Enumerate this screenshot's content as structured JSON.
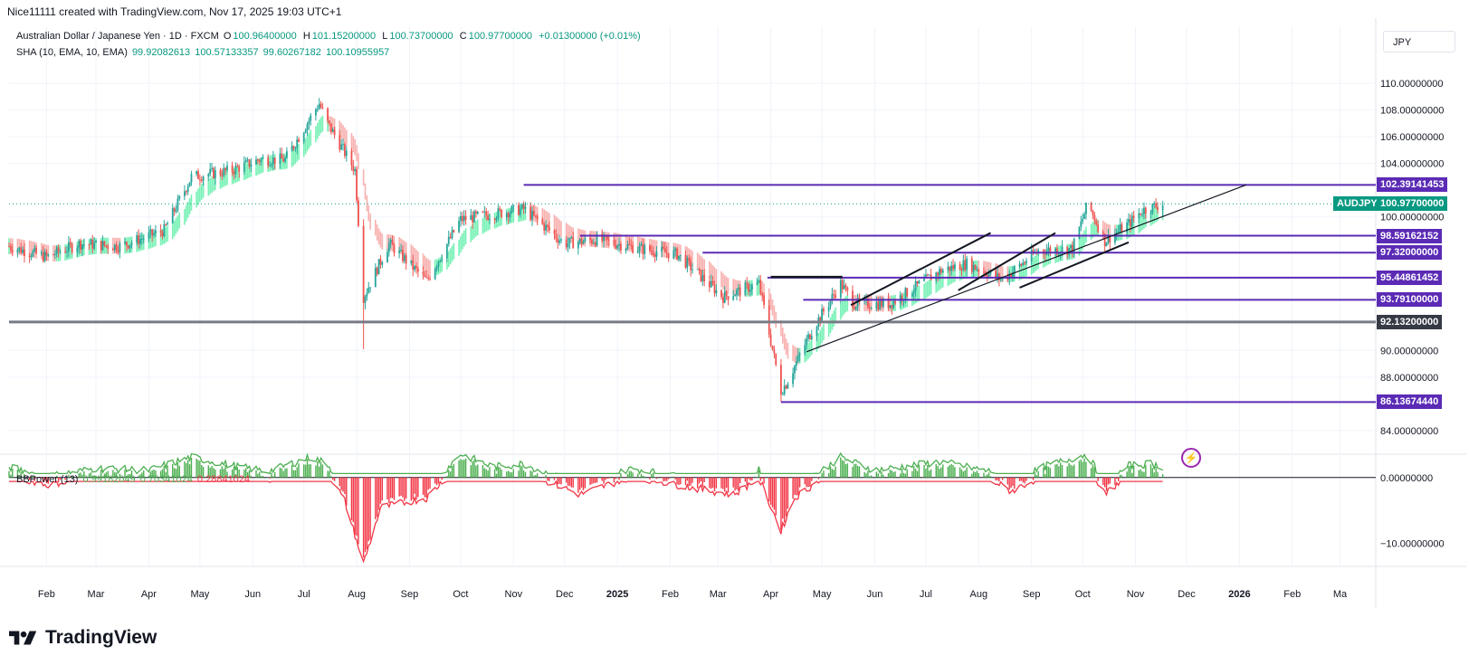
{
  "header": {
    "byline": "Nice11111 created with TradingView.com, Nov 17, 2025 19:03 UTC+1"
  },
  "legend": {
    "symbol_title": "Australian Dollar / Japanese Yen · 1D · FXCM",
    "open_label": "O",
    "open": "100.96400000",
    "high_label": "H",
    "high": "101.15200000",
    "low_label": "L",
    "low": "100.73700000",
    "close_label": "C",
    "close": "100.97700000",
    "change": "+0.01300000 (+0.01%)",
    "sha_label": "SHA (10, EMA, 10, EMA)",
    "sha_values": [
      "99.92082613",
      "100.57133357",
      "99.60267182",
      "100.10955957"
    ],
    "bbp_label": "BBPower (13)",
    "bbp_values": [
      "0.99182049",
      "0.70341024",
      "0.28841024"
    ]
  },
  "currency": "JPY",
  "footer": {
    "brand": "TradingView"
  },
  "colors": {
    "up": "#26a69a",
    "up_light": "#69f0ae",
    "down": "#ef5350",
    "down_light": "#f7a9a7",
    "level": "#5b2bb5",
    "support": "#787b86",
    "bbp_up": "#4caf50",
    "bbp_down": "#f23645",
    "teal": "#089981"
  },
  "chart_data": [
    {
      "type": "candlestick",
      "title": "Australian Dollar / Japanese Yen · 1D · FXCM",
      "symbol": "AUDJPY",
      "y_axis": {
        "unit": "JPY",
        "ticks": [
          "110.00000000",
          "108.00000000",
          "106.00000000",
          "104.00000000",
          "100.00000000",
          "90.00000000",
          "88.00000000",
          "84.00000000"
        ],
        "tick_values": [
          110,
          108,
          106,
          104,
          100,
          90,
          88,
          84
        ],
        "ylim": [
          82.5,
          111.5
        ]
      },
      "x_axis": {
        "ticks": [
          "Feb",
          "Mar",
          "Apr",
          "May",
          "Jun",
          "Jul",
          "Aug",
          "Sep",
          "Oct",
          "Nov",
          "Dec",
          "2025",
          "Feb",
          "Mar",
          "Apr",
          "May",
          "Jun",
          "Jul",
          "Aug",
          "Sep",
          "Oct",
          "Nov",
          "Dec",
          "2026",
          "Feb",
          "Ma"
        ],
        "tick_dates": [
          "2024-02-01",
          "2024-03-01",
          "2024-04-01",
          "2024-05-01",
          "2024-06-01",
          "2024-07-01",
          "2024-08-01",
          "2024-09-01",
          "2024-10-01",
          "2024-11-01",
          "2024-12-01",
          "2025-01-01",
          "2025-02-01",
          "2025-03-01",
          "2025-04-01",
          "2025-05-01",
          "2025-06-01",
          "2025-07-01",
          "2025-08-01",
          "2025-09-01",
          "2025-10-01",
          "2025-11-01",
          "2025-12-01",
          "2026-01-01",
          "2026-02-01",
          "2026-03-01"
        ]
      },
      "price_path": [
        [
          "2024-01-10",
          97.8
        ],
        [
          "2024-02-01",
          97.0
        ],
        [
          "2024-02-20",
          98.0
        ],
        [
          "2024-03-15",
          97.8
        ],
        [
          "2024-04-10",
          99.0
        ],
        [
          "2024-04-26",
          103.0
        ],
        [
          "2024-05-20",
          103.5
        ],
        [
          "2024-06-05",
          104.3
        ],
        [
          "2024-06-20",
          104.3
        ],
        [
          "2024-07-10",
          108.5
        ],
        [
          "2024-07-15",
          107.0
        ],
        [
          "2024-07-31",
          103.5
        ],
        [
          "2024-08-05",
          94.0
        ],
        [
          "2024-08-20",
          98.0
        ],
        [
          "2024-09-11",
          95.2
        ],
        [
          "2024-10-01",
          99.8
        ],
        [
          "2024-11-07",
          100.6
        ],
        [
          "2024-12-01",
          98.0
        ],
        [
          "2024-12-20",
          98.3
        ],
        [
          "2025-01-15",
          97.6
        ],
        [
          "2025-02-05",
          97.2
        ],
        [
          "2025-03-04",
          94.0
        ],
        [
          "2025-03-25",
          95.0
        ],
        [
          "2025-04-07",
          87.0
        ],
        [
          "2025-04-10",
          87.5
        ],
        [
          "2025-04-25",
          91.5
        ],
        [
          "2025-05-12",
          95.0
        ],
        [
          "2025-05-20",
          93.5
        ],
        [
          "2025-06-10",
          93.5
        ],
        [
          "2025-07-10",
          96.0
        ],
        [
          "2025-07-25",
          96.5
        ],
        [
          "2025-08-15",
          95.3
        ],
        [
          "2025-09-05",
          97.5
        ],
        [
          "2025-09-25",
          97.6
        ],
        [
          "2025-10-04",
          101.0
        ],
        [
          "2025-10-14",
          98.2
        ],
        [
          "2025-10-28",
          99.5
        ],
        [
          "2025-11-05",
          100.5
        ],
        [
          "2025-11-17",
          100.977
        ]
      ],
      "last_close": 100.977,
      "lows": [
        {
          "date": "2024-08-05",
          "value": 90.1
        },
        {
          "date": "2025-04-07",
          "value": 86.1367444
        }
      ],
      "horizontal_levels": [
        {
          "label": "102.39141453",
          "value": 102.39141453,
          "from": "2024-11-07"
        },
        {
          "label": "98.59162152",
          "value": 98.59162152,
          "from": "2024-12-10"
        },
        {
          "label": "97.32000000",
          "value": 97.32,
          "from": "2025-02-20"
        },
        {
          "label": "95.44861452",
          "value": 95.44861452,
          "from": "2025-03-30"
        },
        {
          "label": "93.79100000",
          "value": 93.791,
          "from": "2025-04-20"
        },
        {
          "label": "92.13200000",
          "value": 92.132,
          "from": "2024-01-01"
        },
        {
          "label": "86.13674440",
          "value": 86.1367444,
          "from": "2025-04-07"
        }
      ],
      "price_tag": {
        "symbol": "AUDJPY",
        "value": "100.97700000"
      },
      "trendlines": [
        {
          "from": [
            "2025-04-22",
            89.9
          ],
          "to": [
            "2026-01-05",
            102.4
          ]
        },
        {
          "from": [
            "2025-05-18",
            93.4
          ],
          "to": [
            "2025-08-08",
            98.8
          ]
        },
        {
          "from": [
            "2025-07-20",
            94.5
          ],
          "to": [
            "2025-09-15",
            98.8
          ]
        },
        {
          "from": [
            "2025-08-25",
            94.7
          ],
          "to": [
            "2025-10-28",
            98.1
          ]
        }
      ],
      "resistance_box_line": {
        "from": "2025-04-01",
        "to": "2025-05-13",
        "value": 95.5
      }
    },
    {
      "type": "histogram",
      "title": "BBPower (13)",
      "y_axis": {
        "ticks": [
          "0.00000000",
          "−10.00000000"
        ],
        "tick_values": [
          0,
          -10
        ],
        "ylim": [
          -13,
          3
        ]
      },
      "path": [
        [
          "2024-01-10",
          1
        ],
        [
          "2024-02-01",
          -0.5
        ],
        [
          "2024-03-01",
          0.8
        ],
        [
          "2024-04-01",
          0.5
        ],
        [
          "2024-04-26",
          2.5
        ],
        [
          "2024-05-20",
          1.2
        ],
        [
          "2024-06-10",
          0.3
        ],
        [
          "2024-07-05",
          2.5
        ],
        [
          "2024-07-15",
          1.5
        ],
        [
          "2024-07-25",
          -3
        ],
        [
          "2024-08-05",
          -12.5
        ],
        [
          "2024-08-15",
          -4
        ],
        [
          "2024-09-11",
          -2.5
        ],
        [
          "2024-10-01",
          3
        ],
        [
          "2024-10-20",
          1
        ],
        [
          "2024-11-07",
          1.5
        ],
        [
          "2024-12-10",
          -2
        ],
        [
          "2025-01-10",
          0.8
        ],
        [
          "2025-02-15",
          -1
        ],
        [
          "2025-03-10",
          -2
        ],
        [
          "2025-03-25",
          0.5
        ],
        [
          "2025-04-07",
          -7.5
        ],
        [
          "2025-04-15",
          -2.5
        ],
        [
          "2025-05-12",
          2.5
        ],
        [
          "2025-06-01",
          0.5
        ],
        [
          "2025-07-10",
          1.8
        ],
        [
          "2025-08-08",
          0.3
        ],
        [
          "2025-08-20",
          -1.5
        ],
        [
          "2025-09-10",
          1.2
        ],
        [
          "2025-10-04",
          3
        ],
        [
          "2025-10-14",
          -2
        ],
        [
          "2025-10-28",
          1.2
        ],
        [
          "2025-11-10",
          1.5
        ],
        [
          "2025-11-17",
          1
        ]
      ]
    }
  ]
}
